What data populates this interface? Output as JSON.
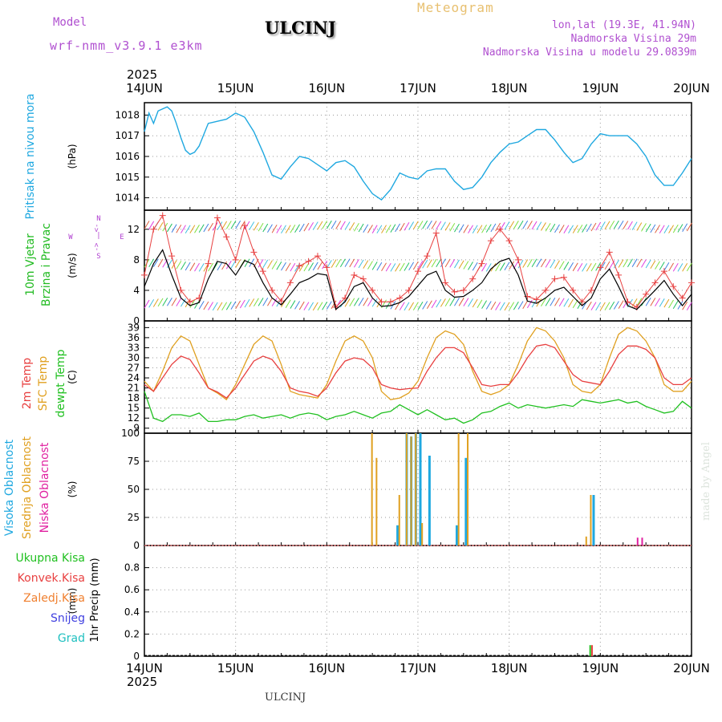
{
  "header": {
    "model_label": "Model",
    "model_name": "wrf-nmm_v3.9.1 e3km",
    "station": "ULCINJ",
    "product": "Meteogram",
    "lonlat": "lon,lat (19.3E, 41.94N)",
    "elevation": "Nadmorska Visina 29m",
    "model_elevation": "Nadmorska Visina u modelu 29.0839m"
  },
  "footer": {
    "station": "ULCINJ",
    "credit": "made by Angel"
  },
  "colors": {
    "pressure": "#1fa8e0",
    "wind_label": "#22bb22",
    "wind_arrows": "#b040d0",
    "temp2m": "#e84040",
    "sfc": "#e0a020",
    "dewpt": "#20c020",
    "high_cloud": "#1fa8e0",
    "mid_cloud": "#e0a020",
    "low_cloud": "#e020a0",
    "total_precip": "#20c020",
    "convective": "#e84040",
    "freezing": "#f08030",
    "snow": "#4040e0",
    "hail": "#20c0c0"
  },
  "chart_data": [
    {
      "type": "line",
      "panel": "pressure",
      "title": "",
      "ylabel": "Pritisak na nivou mora",
      "unit": "(hPa)",
      "ylim": [
        1013.4,
        1018.6
      ],
      "yticks": [
        1014,
        1015,
        1016,
        1017,
        1018
      ],
      "grid": true,
      "series": [
        {
          "name": "Pritisak na nivou mora",
          "x": [
            0,
            0.05,
            0.1,
            0.15,
            0.2,
            0.25,
            0.3,
            0.35,
            0.4,
            0.45,
            0.5,
            0.55,
            0.6,
            0.7,
            0.8,
            0.9,
            1.0,
            1.1,
            1.2,
            1.3,
            1.4,
            1.5,
            1.6,
            1.7,
            1.8,
            1.9,
            2.0,
            2.1,
            2.2,
            2.3,
            2.4,
            2.5,
            2.6,
            2.7,
            2.8,
            2.9,
            3.0,
            3.1,
            3.2,
            3.3,
            3.4,
            3.5,
            3.6,
            3.7,
            3.8,
            3.9,
            4.0,
            4.1,
            4.2,
            4.3,
            4.4,
            4.5,
            4.6,
            4.7,
            4.8,
            4.9,
            5.0,
            5.1,
            5.2,
            5.3,
            5.4,
            5.5,
            5.6,
            5.7,
            5.8,
            5.9,
            6.0
          ],
          "y": [
            1017.2,
            1018.1,
            1017.6,
            1018.2,
            1018.3,
            1018.4,
            1018.2,
            1017.6,
            1016.9,
            1016.3,
            1016.1,
            1016.2,
            1016.5,
            1017.6,
            1017.7,
            1017.8,
            1018.1,
            1017.9,
            1017.2,
            1016.2,
            1015.1,
            1014.9,
            1015.5,
            1016.0,
            1015.9,
            1015.6,
            1015.3,
            1015.7,
            1015.8,
            1015.5,
            1014.8,
            1014.2,
            1013.9,
            1014.4,
            1015.2,
            1015.0,
            1014.9,
            1015.3,
            1015.4,
            1015.4,
            1014.8,
            1014.4,
            1014.5,
            1015.0,
            1015.7,
            1016.2,
            1016.6,
            1016.7,
            1017.0,
            1017.3,
            1017.3,
            1016.8,
            1016.2,
            1015.7,
            1015.9,
            1016.6,
            1017.1,
            1017.0,
            1017.0,
            1017.0,
            1016.6,
            1016.0,
            1015.1,
            1014.6,
            1014.6,
            1015.2,
            1015.9
          ]
        }
      ]
    },
    {
      "type": "line",
      "panel": "wind",
      "ylabel": "10m Vjetar",
      "ylabel2": "Brzina i Pravac",
      "unit": "(m/s)",
      "ylim": [
        0,
        14.5
      ],
      "yticks": [
        0,
        4,
        8,
        12
      ],
      "grid": true,
      "compass_labels": [
        "N",
        "<-",
        "|",
        "->",
        "E",
        "W",
        "S"
      ],
      "series": [
        {
          "name": "10m Vjetar",
          "x": [
            0,
            0.1,
            0.2,
            0.3,
            0.4,
            0.5,
            0.6,
            0.7,
            0.8,
            0.9,
            1.0,
            1.1,
            1.2,
            1.3,
            1.4,
            1.5,
            1.6,
            1.7,
            1.8,
            1.9,
            2.0,
            2.1,
            2.2,
            2.3,
            2.4,
            2.5,
            2.6,
            2.7,
            2.8,
            2.9,
            3.0,
            3.1,
            3.2,
            3.3,
            3.4,
            3.5,
            3.6,
            3.7,
            3.8,
            3.9,
            4.0,
            4.1,
            4.2,
            4.3,
            4.4,
            4.5,
            4.6,
            4.7,
            4.8,
            4.9,
            5.0,
            5.1,
            5.2,
            5.3,
            5.4,
            5.5,
            5.6,
            5.7,
            5.8,
            5.9,
            6.0
          ],
          "y": [
            4.5,
            7.5,
            9.3,
            6.0,
            3.0,
            2.0,
            2.4,
            5.5,
            7.8,
            7.5,
            6.0,
            7.9,
            7.4,
            5.0,
            3.0,
            2.1,
            3.5,
            5.0,
            5.5,
            6.2,
            6.0,
            1.5,
            2.5,
            4.5,
            5.0,
            3.0,
            1.9,
            2.0,
            2.4,
            3.2,
            4.6,
            6.0,
            6.5,
            4.0,
            3.1,
            3.2,
            4.0,
            5.0,
            6.8,
            7.8,
            8.2,
            6.0,
            2.6,
            2.3,
            3.0,
            4.0,
            4.4,
            3.2,
            2.0,
            3.0,
            5.5,
            6.8,
            4.5,
            2.0,
            1.5,
            2.8,
            4.0,
            5.3,
            3.5,
            2.0,
            3.5
          ]
        },
        {
          "name": "gust",
          "x": [
            0,
            0.1,
            0.2,
            0.3,
            0.4,
            0.5,
            0.6,
            0.7,
            0.8,
            0.9,
            1.0,
            1.1,
            1.2,
            1.3,
            1.4,
            1.5,
            1.6,
            1.7,
            1.8,
            1.9,
            2.0,
            2.1,
            2.2,
            2.3,
            2.4,
            2.5,
            2.6,
            2.7,
            2.8,
            2.9,
            3.0,
            3.1,
            3.2,
            3.3,
            3.4,
            3.5,
            3.6,
            3.7,
            3.8,
            3.9,
            4.0,
            4.1,
            4.2,
            4.3,
            4.4,
            4.5,
            4.6,
            4.7,
            4.8,
            4.9,
            5.0,
            5.1,
            5.2,
            5.3,
            5.4,
            5.5,
            5.6,
            5.7,
            5.8,
            5.9,
            6.0
          ],
          "y": [
            6,
            12,
            13.8,
            8.5,
            4.0,
            2.5,
            3.0,
            7.5,
            13.5,
            11.0,
            8.0,
            12.5,
            9.0,
            6.5,
            4.0,
            2.6,
            5.0,
            7.2,
            7.8,
            8.5,
            7.0,
            1.8,
            3.0,
            6.0,
            5.5,
            4.0,
            2.5,
            2.5,
            3.0,
            4.0,
            6.5,
            8.5,
            11.5,
            5.0,
            3.8,
            4.0,
            5.5,
            7.5,
            10.5,
            12.0,
            10.5,
            8.0,
            3.2,
            2.8,
            4.0,
            5.5,
            5.7,
            4.0,
            2.5,
            4.0,
            7.0,
            9.0,
            6.0,
            2.5,
            1.8,
            3.5,
            5.0,
            6.5,
            4.5,
            3.0,
            5.0
          ]
        }
      ]
    },
    {
      "type": "line",
      "panel": "temperature",
      "unit": "(C)",
      "ylim": [
        7.5,
        41
      ],
      "yticks": [
        9,
        12,
        15,
        18,
        21,
        24,
        27,
        30,
        33,
        36,
        39
      ],
      "grid": true,
      "series": [
        {
          "name": "2m Temp",
          "x": [
            0,
            0.1,
            0.2,
            0.3,
            0.4,
            0.5,
            0.6,
            0.7,
            0.8,
            0.9,
            1.0,
            1.1,
            1.2,
            1.3,
            1.4,
            1.5,
            1.6,
            1.7,
            1.8,
            1.9,
            2.0,
            2.1,
            2.2,
            2.3,
            2.4,
            2.5,
            2.6,
            2.7,
            2.8,
            2.9,
            3.0,
            3.1,
            3.2,
            3.3,
            3.4,
            3.5,
            3.6,
            3.7,
            3.8,
            3.9,
            4.0,
            4.1,
            4.2,
            4.3,
            4.4,
            4.5,
            4.6,
            4.7,
            4.8,
            4.9,
            5.0,
            5.1,
            5.2,
            5.3,
            5.4,
            5.5,
            5.6,
            5.7,
            5.8,
            5.9,
            6.0
          ],
          "y": [
            22,
            20,
            24,
            28,
            30.5,
            29.5,
            25.5,
            21,
            19.8,
            18,
            21,
            25,
            29,
            30.5,
            29.5,
            26,
            21,
            20,
            19.5,
            18.5,
            21,
            25.5,
            29,
            30,
            29.5,
            27,
            22,
            21,
            20.5,
            20.8,
            21,
            26,
            30,
            33,
            33,
            31.5,
            27,
            22,
            21.5,
            22,
            22,
            25.5,
            30,
            33.5,
            34,
            33,
            29,
            25,
            23,
            22.5,
            22,
            26,
            31,
            33.5,
            33.5,
            32.5,
            30,
            24,
            22,
            22,
            24
          ]
        },
        {
          "name": "SFC Temp",
          "x": [
            0,
            0.1,
            0.2,
            0.3,
            0.4,
            0.5,
            0.6,
            0.7,
            0.8,
            0.9,
            1.0,
            1.1,
            1.2,
            1.3,
            1.4,
            1.5,
            1.6,
            1.7,
            1.8,
            1.9,
            2.0,
            2.1,
            2.2,
            2.3,
            2.4,
            2.5,
            2.6,
            2.7,
            2.8,
            2.9,
            3.0,
            3.1,
            3.2,
            3.3,
            3.4,
            3.5,
            3.6,
            3.7,
            3.8,
            3.9,
            4.0,
            4.1,
            4.2,
            4.3,
            4.4,
            4.5,
            4.6,
            4.7,
            4.8,
            4.9,
            5.0,
            5.1,
            5.2,
            5.3,
            5.4,
            5.5,
            5.6,
            5.7,
            5.8,
            5.9,
            6.0
          ],
          "y": [
            23,
            20,
            26,
            33,
            36.5,
            35,
            28,
            21,
            19.5,
            17.5,
            22,
            28,
            34,
            36.5,
            35,
            28,
            20,
            19,
            18.5,
            18,
            22,
            29,
            35,
            36.5,
            35,
            30,
            20,
            17.5,
            18,
            19.5,
            23,
            30,
            36,
            38,
            37,
            34,
            26,
            20,
            19,
            20,
            22,
            28,
            35,
            39,
            38,
            35,
            30,
            22,
            20,
            19.5,
            22,
            30,
            37,
            39,
            38,
            35,
            30,
            22,
            20,
            20,
            23
          ]
        },
        {
          "name": "dewpt Temp",
          "x": [
            0,
            0.1,
            0.2,
            0.3,
            0.4,
            0.5,
            0.6,
            0.7,
            0.8,
            0.9,
            1.0,
            1.1,
            1.2,
            1.3,
            1.4,
            1.5,
            1.6,
            1.7,
            1.8,
            1.9,
            2.0,
            2.1,
            2.2,
            2.3,
            2.4,
            2.5,
            2.6,
            2.7,
            2.8,
            2.9,
            3.0,
            3.1,
            3.2,
            3.3,
            3.4,
            3.5,
            3.6,
            3.7,
            3.8,
            3.9,
            4.0,
            4.1,
            4.2,
            4.3,
            4.4,
            4.5,
            4.6,
            4.7,
            4.8,
            4.9,
            5.0,
            5.1,
            5.2,
            5.3,
            5.4,
            5.5,
            5.6,
            5.7,
            5.8,
            5.9,
            6.0
          ],
          "y": [
            20,
            12,
            11,
            13,
            13,
            12.5,
            13.5,
            11,
            11,
            11.5,
            11.5,
            12.5,
            13,
            12,
            12.5,
            13,
            12,
            13,
            13.5,
            13,
            11.5,
            12.5,
            13,
            14,
            13,
            12,
            13.5,
            14,
            16,
            14.5,
            13,
            14.5,
            13,
            11.5,
            12,
            10.5,
            11.5,
            13.5,
            14,
            15.5,
            16.5,
            15,
            16,
            15.5,
            15,
            15.5,
            16,
            15.5,
            17.5,
            17,
            16.5,
            17,
            17.5,
            16.5,
            17,
            15.5,
            14.5,
            13.5,
            14,
            17,
            15
          ]
        }
      ]
    },
    {
      "type": "bar",
      "panel": "cloud",
      "unit": "(%)",
      "ylim": [
        0,
        100
      ],
      "yticks": [
        0,
        25,
        50,
        75,
        100
      ],
      "grid": true,
      "series": [
        {
          "name": "Visoka Oblacnost",
          "x": [
            2.75,
            2.85,
            2.9,
            2.95,
            3.0,
            3.1,
            3.4,
            3.5,
            4.9
          ],
          "values": [
            18,
            100,
            97,
            100,
            100,
            80,
            18,
            78,
            45
          ]
        },
        {
          "name": "Srednja Oblacnost",
          "x": [
            2.5,
            2.55,
            2.8,
            2.88,
            2.93,
            2.98,
            3.05,
            3.45,
            3.55,
            4.85,
            4.9
          ],
          "values": [
            100,
            78,
            45,
            100,
            97,
            100,
            20,
            100,
            100,
            8,
            45
          ]
        },
        {
          "name": "Niska Oblacnost",
          "x": [
            5.4,
            5.45
          ],
          "values": [
            7,
            7
          ]
        }
      ]
    },
    {
      "type": "bar",
      "panel": "precip",
      "ylabel": "1hr Precip",
      "unit": "(mm)",
      "ylim": [
        0,
        1
      ],
      "yticks": [
        0,
        0.2,
        0.4,
        0.6,
        0.8
      ],
      "grid": true,
      "series": [
        {
          "name": "Ukupna Kisa",
          "x": [
            4.88
          ],
          "values": [
            0.1
          ]
        },
        {
          "name": "Konvek.Kisa",
          "x": [
            4.9
          ],
          "values": [
            0.1
          ]
        },
        {
          "name": "Zaledj.Kisa",
          "x": [],
          "values": []
        },
        {
          "name": "Snijeg",
          "x": [],
          "values": []
        },
        {
          "name": "Grad",
          "x": [],
          "values": []
        }
      ]
    }
  ],
  "x_axis": {
    "year": "2025",
    "ticks": [
      "14JUN",
      "15JUN",
      "16JUN",
      "17JUN",
      "18JUN",
      "19JUN",
      "20JUN"
    ],
    "range": [
      0,
      6
    ]
  }
}
